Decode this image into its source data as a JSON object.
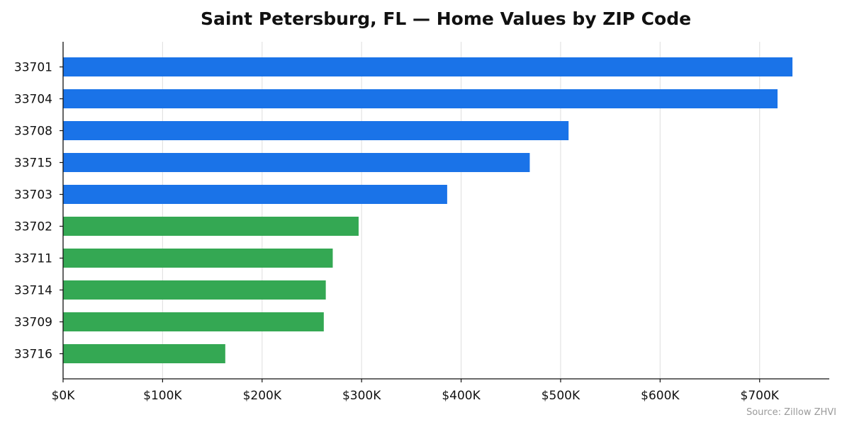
{
  "chart_data": {
    "type": "bar",
    "orientation": "horizontal",
    "title": "Saint Petersburg, FL — Home Values by ZIP Code",
    "xlabel": "",
    "ylabel": "",
    "categories": [
      "33701",
      "33704",
      "33708",
      "33715",
      "33703",
      "33702",
      "33711",
      "33714",
      "33709",
      "33716"
    ],
    "values": [
      733000,
      718000,
      508000,
      469000,
      386000,
      297000,
      271000,
      264000,
      262000,
      163000
    ],
    "bar_colors": [
      "#1a73e8",
      "#1a73e8",
      "#1a73e8",
      "#1a73e8",
      "#1a73e8",
      "#34a853",
      "#34a853",
      "#34a853",
      "#34a853",
      "#34a853"
    ],
    "xlim": [
      0,
      770000
    ],
    "x_ticks": [
      0,
      100000,
      200000,
      300000,
      400000,
      500000,
      600000,
      700000
    ],
    "x_tick_labels": [
      "$0K",
      "$100K",
      "$200K",
      "$300K",
      "$400K",
      "$500K",
      "$600K",
      "$700K"
    ],
    "grid": "vertical",
    "source": "Source: Zillow ZHVI"
  }
}
